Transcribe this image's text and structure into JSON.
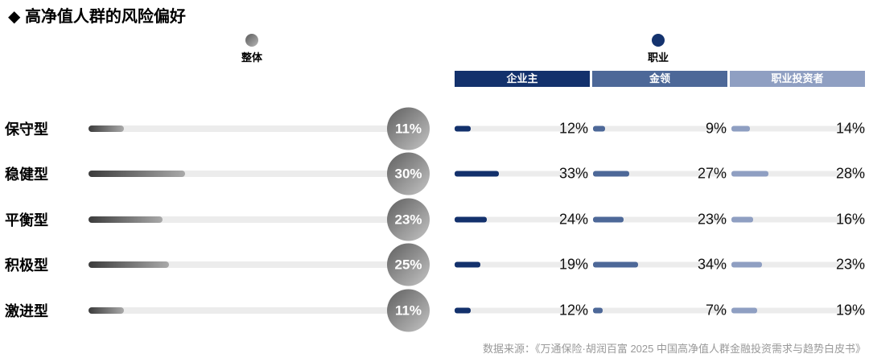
{
  "title": "◆ 高净值人群的风险偏好",
  "legend": {
    "overall": {
      "label": "整体",
      "dot_gradient": [
        "#5a5a5a",
        "#b7b7b7"
      ]
    },
    "occupation": {
      "label": "职业",
      "dot_color": "#14336e"
    }
  },
  "columns": [
    {
      "label": "企业主",
      "color": "#13316c"
    },
    {
      "label": "金领",
      "color": "#4d6898"
    },
    {
      "label": "职业投资者",
      "color": "#8f9fc2"
    }
  ],
  "bars": {
    "track_color": "#ececec",
    "overall_fill_gradient": [
      "#3c3c3c",
      "#a9a9a9"
    ],
    "badge_gradient": [
      "#5f5f5f",
      "#c4c4c4"
    ]
  },
  "source": "数据来源：《万通保险·胡润百富 2025 中国高净值人群金融投资需求与趋势白皮书》",
  "chart_data": {
    "type": "bar",
    "categories": [
      "保守型",
      "稳健型",
      "平衡型",
      "积极型",
      "激进型"
    ],
    "series": [
      {
        "name": "整体",
        "values": [
          11,
          30,
          23,
          25,
          11
        ]
      },
      {
        "name": "企业主",
        "values": [
          12,
          33,
          24,
          19,
          12
        ]
      },
      {
        "name": "金领",
        "values": [
          9,
          27,
          23,
          34,
          7
        ]
      },
      {
        "name": "职业投资者",
        "values": [
          14,
          28,
          16,
          23,
          19
        ]
      }
    ],
    "value_format": "percent",
    "xlim": [
      0,
      100
    ],
    "grid": false,
    "legend_position": "top"
  }
}
